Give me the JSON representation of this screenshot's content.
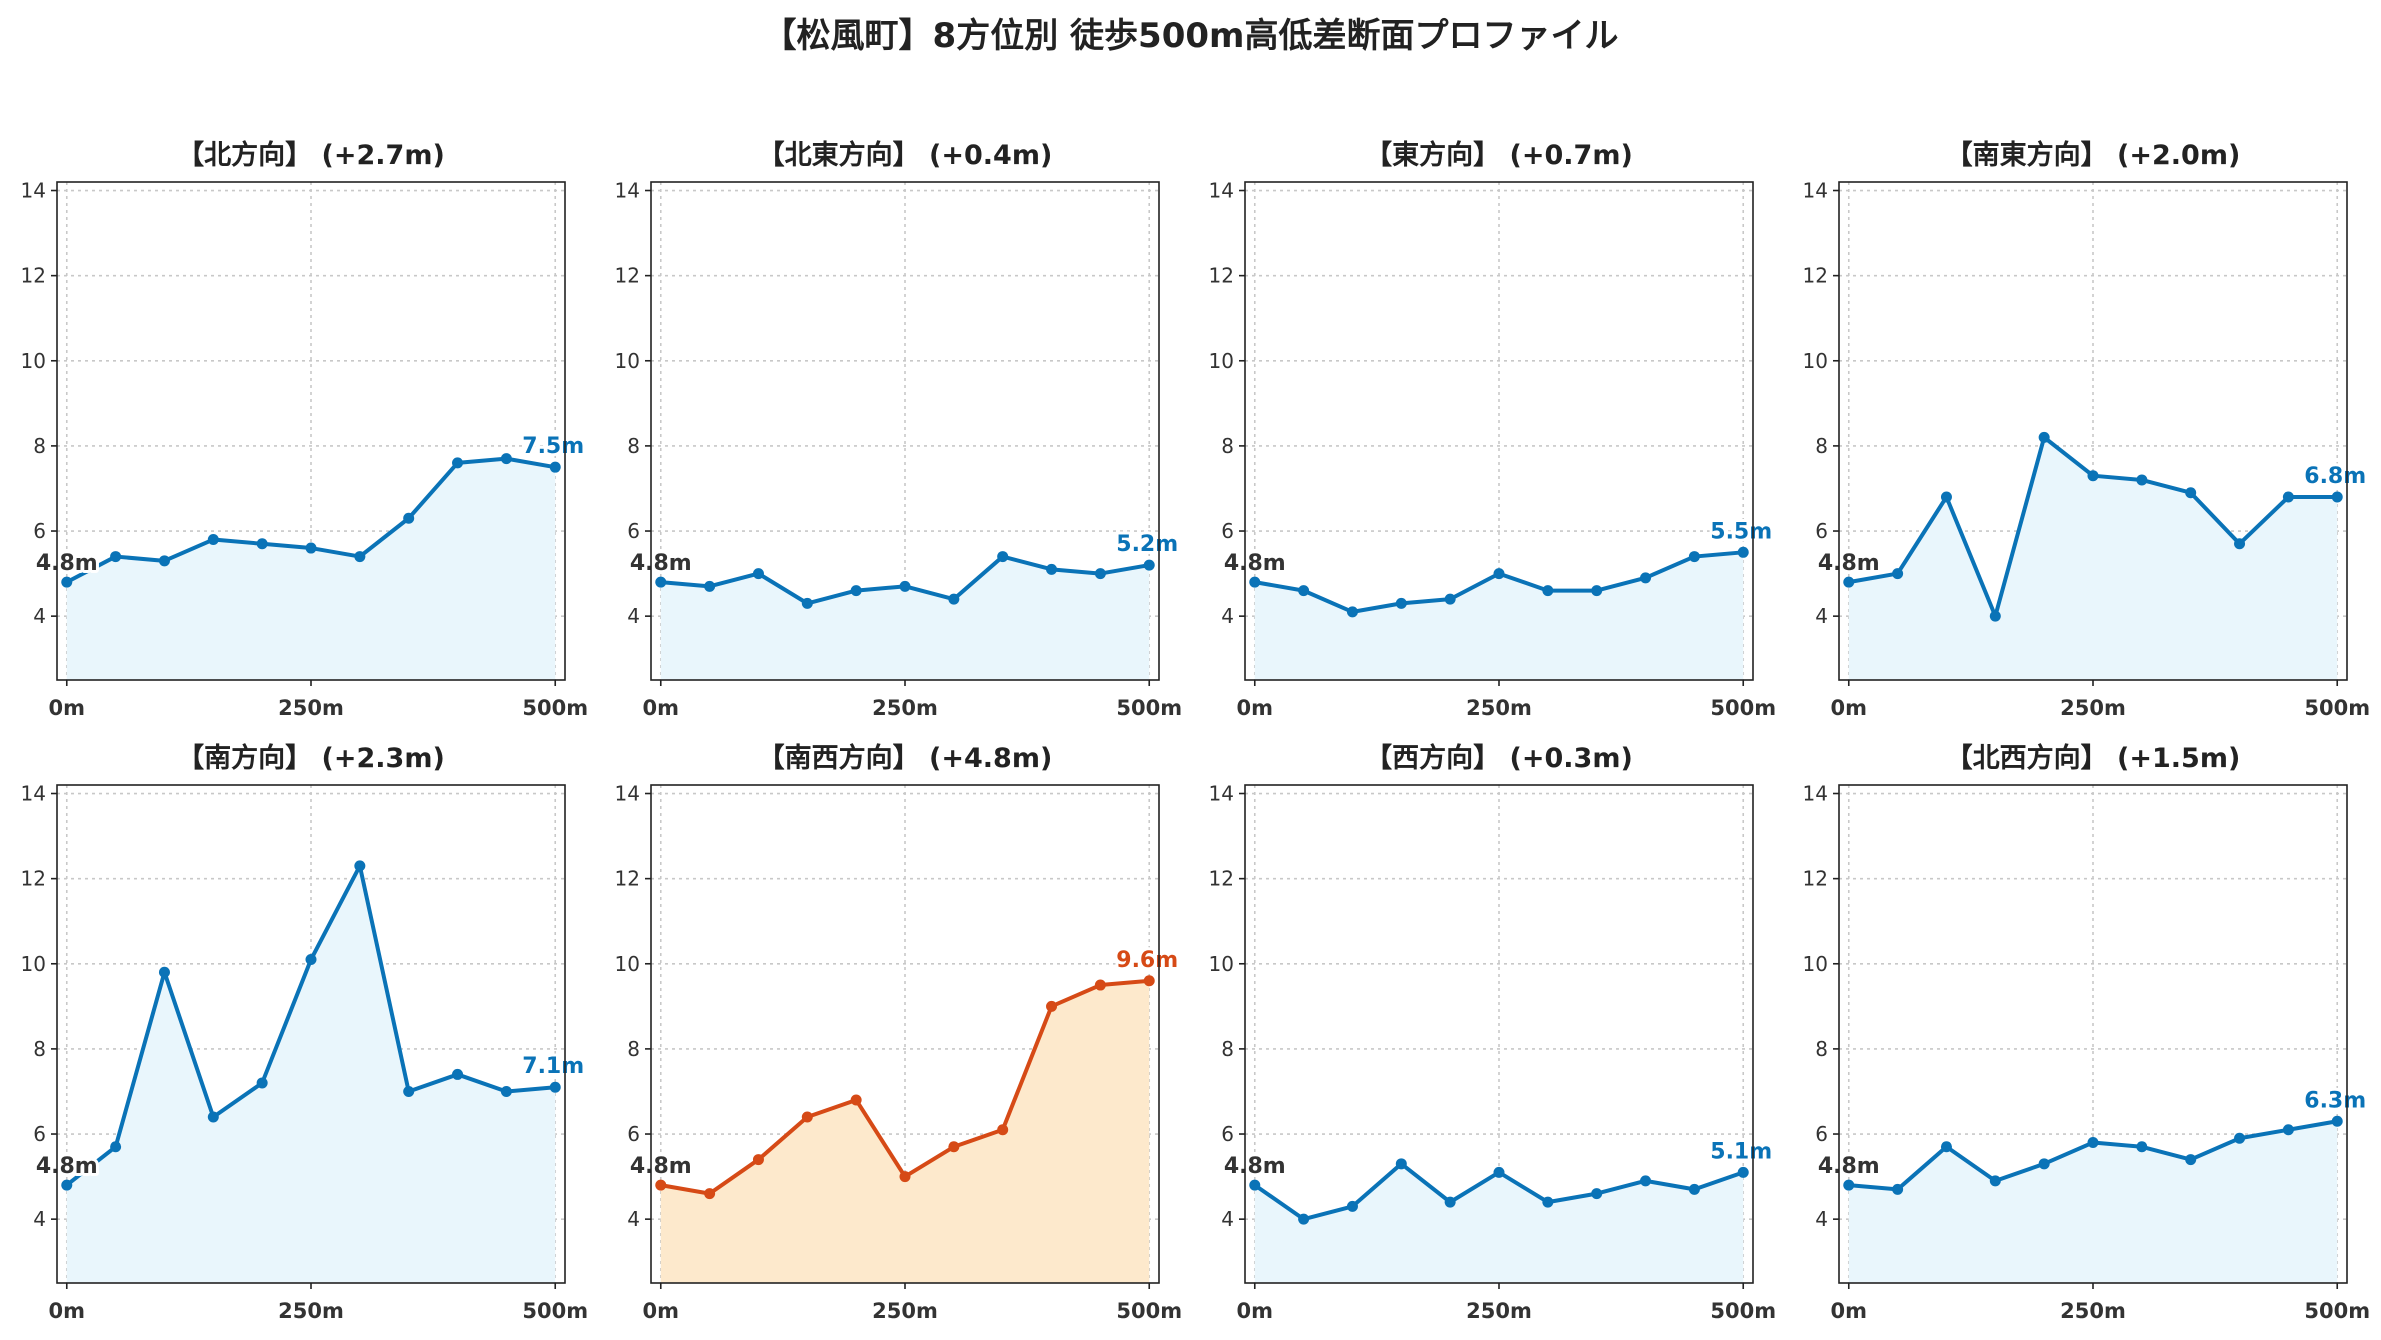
{
  "title": "【松風町】8方位別 徒歩500m高低差断面プロファイル",
  "colors": {
    "line": "#0a73b7",
    "fill": "#e9f6fc",
    "highlight_line": "#d64a16",
    "highlight_fill": "#fde9cc",
    "start_label": "#333333"
  },
  "chart_data": [
    {
      "type": "area",
      "title": "【北方向】 (+2.7m)",
      "x": [
        0,
        50,
        100,
        150,
        200,
        250,
        300,
        350,
        400,
        450,
        500
      ],
      "values": [
        4.8,
        5.4,
        5.3,
        5.8,
        5.7,
        5.6,
        5.4,
        6.3,
        7.6,
        7.7,
        7.5
      ],
      "start_label": "4.8m",
      "end_label": "7.5m",
      "highlight": false,
      "xticks": [
        "0m",
        "250m",
        "500m"
      ],
      "yticks": [
        "4",
        "6",
        "8",
        "10",
        "12",
        "14"
      ],
      "ylim": [
        2.5,
        14.2
      ],
      "xlim": [
        -10,
        510
      ],
      "grid": true
    },
    {
      "type": "area",
      "title": "【北東方向】 (+0.4m)",
      "x": [
        0,
        50,
        100,
        150,
        200,
        250,
        300,
        350,
        400,
        450,
        500
      ],
      "values": [
        4.8,
        4.7,
        5.0,
        4.3,
        4.6,
        4.7,
        4.4,
        5.4,
        5.1,
        5.0,
        5.2
      ],
      "start_label": "4.8m",
      "end_label": "5.2m",
      "highlight": false,
      "xticks": [
        "0m",
        "250m",
        "500m"
      ],
      "yticks": [
        "4",
        "6",
        "8",
        "10",
        "12",
        "14"
      ],
      "ylim": [
        2.5,
        14.2
      ],
      "xlim": [
        -10,
        510
      ],
      "grid": true
    },
    {
      "type": "area",
      "title": "【東方向】 (+0.7m)",
      "x": [
        0,
        50,
        100,
        150,
        200,
        250,
        300,
        350,
        400,
        450,
        500
      ],
      "values": [
        4.8,
        4.6,
        4.1,
        4.3,
        4.4,
        5.0,
        4.6,
        4.6,
        4.9,
        5.4,
        5.5
      ],
      "start_label": "4.8m",
      "end_label": "5.5m",
      "highlight": false,
      "xticks": [
        "0m",
        "250m",
        "500m"
      ],
      "yticks": [
        "4",
        "6",
        "8",
        "10",
        "12",
        "14"
      ],
      "ylim": [
        2.5,
        14.2
      ],
      "xlim": [
        -10,
        510
      ],
      "grid": true
    },
    {
      "type": "area",
      "title": "【南東方向】 (+2.0m)",
      "x": [
        0,
        50,
        100,
        150,
        200,
        250,
        300,
        350,
        400,
        450,
        500
      ],
      "values": [
        4.8,
        5.0,
        6.8,
        4.0,
        8.2,
        7.3,
        7.2,
        6.9,
        5.7,
        6.8,
        6.8
      ],
      "start_label": "4.8m",
      "end_label": "6.8m",
      "highlight": false,
      "xticks": [
        "0m",
        "250m",
        "500m"
      ],
      "yticks": [
        "4",
        "6",
        "8",
        "10",
        "12",
        "14"
      ],
      "ylim": [
        2.5,
        14.2
      ],
      "xlim": [
        -10,
        510
      ],
      "grid": true
    },
    {
      "type": "area",
      "title": "【南方向】 (+2.3m)",
      "x": [
        0,
        50,
        100,
        150,
        200,
        250,
        300,
        350,
        400,
        450,
        500
      ],
      "values": [
        4.8,
        5.7,
        9.8,
        6.4,
        7.2,
        10.1,
        12.3,
        7.0,
        7.4,
        7.0,
        7.1
      ],
      "start_label": "4.8m",
      "end_label": "7.1m",
      "highlight": false,
      "xticks": [
        "0m",
        "250m",
        "500m"
      ],
      "yticks": [
        "4",
        "6",
        "8",
        "10",
        "12",
        "14"
      ],
      "ylim": [
        2.5,
        14.2
      ],
      "xlim": [
        -10,
        510
      ],
      "grid": true
    },
    {
      "type": "area",
      "title": "【南西方向】 (+4.8m)",
      "x": [
        0,
        50,
        100,
        150,
        200,
        250,
        300,
        350,
        400,
        450,
        500
      ],
      "values": [
        4.8,
        4.6,
        5.4,
        6.4,
        6.8,
        5.0,
        5.7,
        6.1,
        9.0,
        9.5,
        9.6
      ],
      "start_label": "4.8m",
      "end_label": "9.6m",
      "highlight": true,
      "xticks": [
        "0m",
        "250m",
        "500m"
      ],
      "yticks": [
        "4",
        "6",
        "8",
        "10",
        "12",
        "14"
      ],
      "ylim": [
        2.5,
        14.2
      ],
      "xlim": [
        -10,
        510
      ],
      "grid": true
    },
    {
      "type": "area",
      "title": "【西方向】 (+0.3m)",
      "x": [
        0,
        50,
        100,
        150,
        200,
        250,
        300,
        350,
        400,
        450,
        500
      ],
      "values": [
        4.8,
        4.0,
        4.3,
        5.3,
        4.4,
        5.1,
        4.4,
        4.6,
        4.9,
        4.7,
        5.1
      ],
      "start_label": "4.8m",
      "end_label": "5.1m",
      "highlight": false,
      "xticks": [
        "0m",
        "250m",
        "500m"
      ],
      "yticks": [
        "4",
        "6",
        "8",
        "10",
        "12",
        "14"
      ],
      "ylim": [
        2.5,
        14.2
      ],
      "xlim": [
        -10,
        510
      ],
      "grid": true
    },
    {
      "type": "area",
      "title": "【北西方向】 (+1.5m)",
      "x": [
        0,
        50,
        100,
        150,
        200,
        250,
        300,
        350,
        400,
        450,
        500
      ],
      "values": [
        4.8,
        4.7,
        5.7,
        4.9,
        5.3,
        5.8,
        5.7,
        5.4,
        5.9,
        6.1,
        6.3
      ],
      "start_label": "4.8m",
      "end_label": "6.3m",
      "highlight": false,
      "xticks": [
        "0m",
        "250m",
        "500m"
      ],
      "yticks": [
        "4",
        "6",
        "8",
        "10",
        "12",
        "14"
      ],
      "ylim": [
        2.5,
        14.2
      ],
      "xlim": [
        -10,
        510
      ],
      "grid": true
    }
  ]
}
